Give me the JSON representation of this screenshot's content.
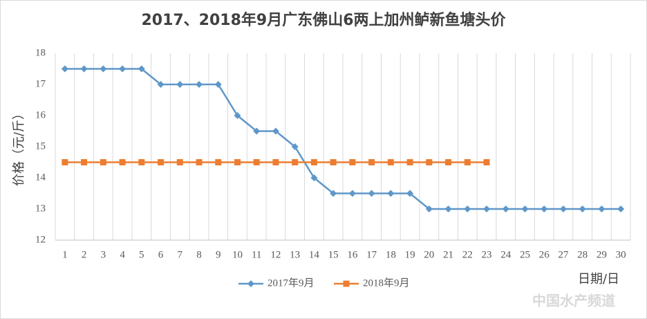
{
  "chart_data": {
    "type": "line",
    "title": "2017、2018年9月广东佛山6两上加州鲈新鱼塘头价",
    "x_label": "日期/日",
    "y_label": "价格（元/斤）",
    "categories": [
      "1",
      "2",
      "3",
      "4",
      "5",
      "6",
      "7",
      "8",
      "9",
      "10",
      "11",
      "12",
      "13",
      "14",
      "15",
      "16",
      "17",
      "18",
      "19",
      "20",
      "21",
      "22",
      "23",
      "24",
      "25",
      "26",
      "27",
      "28",
      "29",
      "30"
    ],
    "series": [
      {
        "name": "2017年9月",
        "color": "#5f97c9",
        "marker": "diamond",
        "values": [
          17.5,
          17.5,
          17.5,
          17.5,
          17.5,
          17,
          17,
          17,
          17,
          16,
          15.5,
          15.5,
          15,
          14,
          13.5,
          13.5,
          13.5,
          13.5,
          13.5,
          13,
          13,
          13,
          13,
          13,
          13,
          13,
          13,
          13,
          13,
          13
        ]
      },
      {
        "name": "2018年9月",
        "color": "#ed7d31",
        "marker": "square",
        "values": [
          14.5,
          14.5,
          14.5,
          14.5,
          14.5,
          14.5,
          14.5,
          14.5,
          14.5,
          14.5,
          14.5,
          14.5,
          14.5,
          14.5,
          14.5,
          14.5,
          14.5,
          14.5,
          14.5,
          14.5,
          14.5,
          14.5,
          14.5,
          null,
          null,
          null,
          null,
          null,
          null,
          null
        ]
      }
    ],
    "ylim": [
      12,
      18
    ],
    "yticks": [
      12,
      13,
      14,
      15,
      16,
      17,
      18
    ],
    "grid": "vertical",
    "legend": "bottom",
    "watermark": "中国水产频道"
  }
}
